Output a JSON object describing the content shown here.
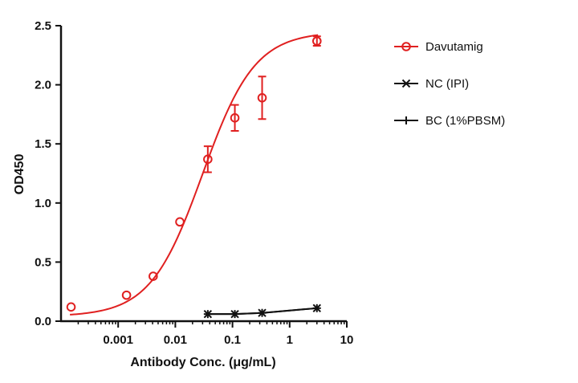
{
  "chart_data": {
    "type": "scatter",
    "xlabel": "Antibody Conc. (μg/mL)",
    "ylabel": "OD450",
    "x_scale": "log",
    "xlim": [
      0.0001,
      10
    ],
    "ylim": [
      0,
      2.5
    ],
    "x_ticks": [
      {
        "value": 0.001,
        "label": "0.001"
      },
      {
        "value": 0.01,
        "label": "0.01"
      },
      {
        "value": 0.1,
        "label": "0.1"
      },
      {
        "value": 1,
        "label": "1"
      },
      {
        "value": 10,
        "label": "10"
      }
    ],
    "y_ticks": [
      {
        "value": 0.0,
        "label": "0.0"
      },
      {
        "value": 0.5,
        "label": "0.5"
      },
      {
        "value": 1.0,
        "label": "1.0"
      },
      {
        "value": 1.5,
        "label": "1.5"
      },
      {
        "value": 2.0,
        "label": "2.0"
      },
      {
        "value": 2.5,
        "label": "2.5"
      }
    ],
    "grid": false,
    "legend_position": "right",
    "series": [
      {
        "name": "Davutamig",
        "color": "#e02020",
        "marker": "open-circle",
        "fit": "4PL",
        "fit_params": {
          "bottom": 0.04,
          "top": 2.45,
          "ec50": 0.03,
          "hill": 0.95
        },
        "points": [
          {
            "x": 0.00015,
            "y": 0.12,
            "err": 0
          },
          {
            "x": 0.0014,
            "y": 0.22,
            "err": 0
          },
          {
            "x": 0.0041,
            "y": 0.38,
            "err": 0
          },
          {
            "x": 0.012,
            "y": 0.84,
            "err": 0
          },
          {
            "x": 0.037,
            "y": 1.37,
            "err": 0.11
          },
          {
            "x": 0.11,
            "y": 1.72,
            "err": 0.11
          },
          {
            "x": 0.33,
            "y": 1.89,
            "err": 0.18
          },
          {
            "x": 3.0,
            "y": 2.37,
            "err": 0.04
          }
        ]
      },
      {
        "name": "NC (IPI)",
        "color": "#111111",
        "marker": "x",
        "points": [
          {
            "x": 0.037,
            "y": 0.06
          },
          {
            "x": 0.11,
            "y": 0.06
          },
          {
            "x": 0.33,
            "y": 0.07
          },
          {
            "x": 3.0,
            "y": 0.11
          }
        ]
      },
      {
        "name": "BC (1%PBSM)",
        "color": "#111111",
        "marker": "plus",
        "points": [
          {
            "x": 0.037,
            "y": 0.06
          },
          {
            "x": 0.11,
            "y": 0.06
          },
          {
            "x": 0.33,
            "y": 0.07
          },
          {
            "x": 3.0,
            "y": 0.11
          }
        ]
      }
    ]
  }
}
